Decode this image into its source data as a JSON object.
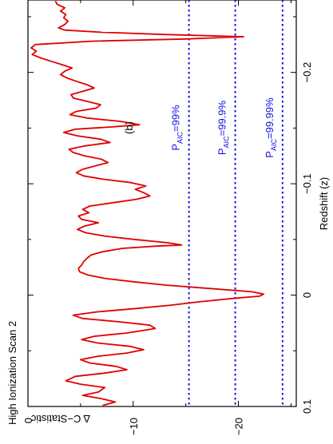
{
  "chart_data": {
    "type": "line",
    "orientation": "rotated-90",
    "panel_label": "(b)",
    "title": "High Ionization Scan 2",
    "xlabel": "Redshift (z)",
    "ylabel": "Δ C−Statistic",
    "xlim": [
      0.1,
      -0.265
    ],
    "ylim": [
      0,
      -25.5
    ],
    "x_ticks": [
      {
        "value": 0.1,
        "label": "0.1"
      },
      {
        "value": 0,
        "label": "0"
      },
      {
        "value": -0.1,
        "label": "−0.1"
      },
      {
        "value": -0.2,
        "label": "−0.2"
      }
    ],
    "y_ticks": [
      {
        "value": 0,
        "label": "0"
      },
      {
        "value": -10,
        "label": "−10"
      },
      {
        "value": -20,
        "label": "−20"
      }
    ],
    "series": [
      {
        "color": "#e00000",
        "points": [
          [
            0.099,
            -7.1
          ],
          [
            0.096,
            -8.3
          ],
          [
            0.093,
            -7.0
          ],
          [
            0.09,
            -5.2
          ],
          [
            0.087,
            -6.7
          ],
          [
            0.083,
            -7.3
          ],
          [
            0.08,
            -5.0
          ],
          [
            0.077,
            -3.6
          ],
          [
            0.073,
            -4.5
          ],
          [
            0.07,
            -7.3
          ],
          [
            0.067,
            -9.4
          ],
          [
            0.064,
            -8.4
          ],
          [
            0.061,
            -5.9
          ],
          [
            0.058,
            -5.0
          ],
          [
            0.055,
            -6.6
          ],
          [
            0.052,
            -9.4
          ],
          [
            0.049,
            -11.0
          ],
          [
            0.046,
            -9.7
          ],
          [
            0.043,
            -6.6
          ],
          [
            0.04,
            -5.1
          ],
          [
            0.037,
            -6.3
          ],
          [
            0.034,
            -9.4
          ],
          [
            0.03,
            -12.1
          ],
          [
            0.027,
            -11.6
          ],
          [
            0.024,
            -8.7
          ],
          [
            0.021,
            -5.2
          ],
          [
            0.018,
            -4.3
          ],
          [
            0.015,
            -6.6
          ],
          [
            0.012,
            -10.3
          ],
          [
            0.009,
            -13.6
          ],
          [
            0.006,
            -16.3
          ],
          [
            0.003,
            -19.5
          ],
          [
            0.001,
            -22.0
          ],
          [
            -0.001,
            -22.4
          ],
          [
            -0.003,
            -21.3
          ],
          [
            -0.006,
            -17.2
          ],
          [
            -0.009,
            -13.1
          ],
          [
            -0.012,
            -10.0
          ],
          [
            -0.015,
            -7.3
          ],
          [
            -0.018,
            -5.7
          ],
          [
            -0.021,
            -4.9
          ],
          [
            -0.024,
            -4.8
          ],
          [
            -0.027,
            -5.1
          ],
          [
            -0.03,
            -5.3
          ],
          [
            -0.033,
            -5.6
          ],
          [
            -0.036,
            -6.0
          ],
          [
            -0.039,
            -7.1
          ],
          [
            -0.042,
            -9.0
          ],
          [
            -0.044,
            -12.2
          ],
          [
            -0.045,
            -14.6
          ],
          [
            -0.047,
            -13.3
          ],
          [
            -0.05,
            -10.1
          ],
          [
            -0.053,
            -7.3
          ],
          [
            -0.056,
            -5.5
          ],
          [
            -0.059,
            -4.7
          ],
          [
            -0.062,
            -5.4
          ],
          [
            -0.065,
            -6.7
          ],
          [
            -0.068,
            -5.1
          ],
          [
            -0.071,
            -4.8
          ],
          [
            -0.074,
            -5.8
          ],
          [
            -0.077,
            -5.2
          ],
          [
            -0.08,
            -5.9
          ],
          [
            -0.083,
            -8.1
          ],
          [
            -0.086,
            -10.3
          ],
          [
            -0.089,
            -11.6
          ],
          [
            -0.092,
            -11.0
          ],
          [
            -0.095,
            -10.2
          ],
          [
            -0.098,
            -11.2
          ],
          [
            -0.101,
            -9.8
          ],
          [
            -0.104,
            -7.2
          ],
          [
            -0.107,
            -5.3
          ],
          [
            -0.11,
            -4.6
          ],
          [
            -0.113,
            -5.2
          ],
          [
            -0.116,
            -6.4
          ],
          [
            -0.119,
            -7.6
          ],
          [
            -0.122,
            -7.0
          ],
          [
            -0.125,
            -5.4
          ],
          [
            -0.128,
            -4.3
          ],
          [
            -0.131,
            -3.9
          ],
          [
            -0.134,
            -5.4
          ],
          [
            -0.137,
            -7.8
          ],
          [
            -0.14,
            -6.9
          ],
          [
            -0.143,
            -4.7
          ],
          [
            -0.146,
            -3.4
          ],
          [
            -0.149,
            -4.5
          ],
          [
            -0.151,
            -7.9
          ],
          [
            -0.153,
            -10.6
          ],
          [
            -0.156,
            -8.8
          ],
          [
            -0.159,
            -5.6
          ],
          [
            -0.162,
            -4.0
          ],
          [
            -0.165,
            -4.6
          ],
          [
            -0.168,
            -6.5
          ],
          [
            -0.171,
            -6.9
          ],
          [
            -0.174,
            -5.6
          ],
          [
            -0.177,
            -4.3
          ],
          [
            -0.18,
            -4.1
          ],
          [
            -0.183,
            -5.2
          ],
          [
            -0.186,
            -6.3
          ],
          [
            -0.189,
            -5.6
          ],
          [
            -0.192,
            -4.6
          ],
          [
            -0.195,
            -3.7
          ],
          [
            -0.198,
            -3.1
          ],
          [
            -0.201,
            -3.5
          ],
          [
            -0.204,
            -4.2
          ],
          [
            -0.207,
            -3.2
          ],
          [
            -0.21,
            -2.2
          ],
          [
            -0.213,
            -1.2
          ],
          [
            -0.216,
            -0.4
          ],
          [
            -0.219,
            -0.8
          ],
          [
            -0.222,
            -0.3
          ],
          [
            -0.225,
            -0.7
          ],
          [
            -0.228,
            -6.0
          ],
          [
            -0.23,
            -15.0
          ],
          [
            -0.232,
            -20.5
          ],
          [
            -0.234,
            -13.0
          ],
          [
            -0.236,
            -7.0
          ],
          [
            -0.238,
            -3.5
          ],
          [
            -0.24,
            -2.9
          ],
          [
            -0.243,
            -3.5
          ],
          [
            -0.246,
            -3.8
          ],
          [
            -0.249,
            -3.4
          ],
          [
            -0.252,
            -3.6
          ],
          [
            -0.255,
            -3.1
          ],
          [
            -0.258,
            -3.5
          ],
          [
            -0.261,
            -2.8
          ],
          [
            -0.264,
            -2.6
          ]
        ]
      }
    ],
    "thresholds": [
      {
        "value": -15.3,
        "label_main": "P",
        "label_sub": "AIC",
        "label_rest": "=99%",
        "color": "#1010e0"
      },
      {
        "value": -19.7,
        "label_main": "P",
        "label_sub": "AIC",
        "label_rest": "=99.9%",
        "color": "#1010e0"
      },
      {
        "value": -24.2,
        "label_main": "P",
        "label_sub": "AIC",
        "label_rest": "=99.99%",
        "color": "#1010e0"
      }
    ],
    "grid": false,
    "legend": "none"
  }
}
